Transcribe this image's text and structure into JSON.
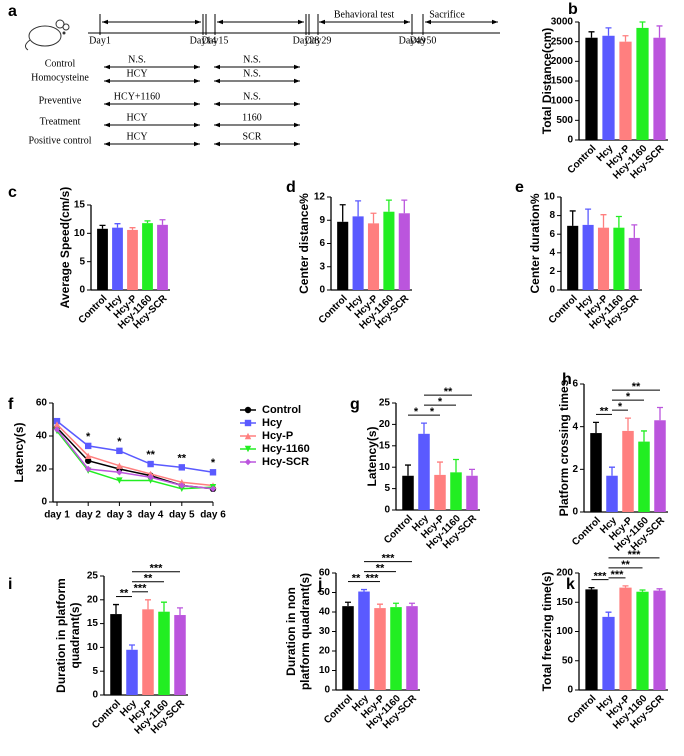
{
  "timeline": {
    "panel": "a",
    "days": [
      "Day1",
      "Day14",
      "Day15",
      "Day28",
      "Day29",
      "Day49",
      "Day50"
    ],
    "phases": [
      "Behavioral test",
      "Sacrifice"
    ],
    "groups": [
      {
        "name": "Control",
        "first": "N.S.",
        "second": "N.S."
      },
      {
        "name": "Homocysteine",
        "first": "HCY",
        "second": "N.S."
      },
      {
        "name": "Preventive",
        "first": "HCY+1160",
        "second": "N.S."
      },
      {
        "name": "Treatment",
        "first": "HCY",
        "second": "1160"
      },
      {
        "name": "Positive control",
        "first": "HCY",
        "second": "SCR"
      }
    ]
  },
  "chart_data": [
    {
      "type": "bar",
      "panel": "b",
      "ylabel": "Total Distance(cm)",
      "categories": [
        "Control",
        "Hcy",
        "Hcy-P",
        "Hcy-1160",
        "Hcy-SCR"
      ],
      "colors": [
        "#000000",
        "#5a5aff",
        "#ff7f7f",
        "#22ee22",
        "#bb55dd"
      ],
      "values": [
        2600,
        2650,
        2500,
        2850,
        2600
      ],
      "errors": [
        150,
        200,
        150,
        150,
        300
      ],
      "ylim": [
        0,
        3000
      ],
      "yticks": [
        0,
        500,
        1000,
        1500,
        2000,
        2500,
        3000
      ]
    },
    {
      "type": "bar",
      "panel": "c",
      "ylabel": "Average Speed(cm/s)",
      "categories": [
        "Control",
        "Hcy",
        "Hcy-P",
        "Hcy-1160",
        "Hcy-SCR"
      ],
      "colors": [
        "#000000",
        "#5a5aff",
        "#ff7f7f",
        "#22ee22",
        "#bb55dd"
      ],
      "values": [
        10.8,
        11,
        10.6,
        11.8,
        11.5
      ],
      "errors": [
        0.6,
        0.7,
        0.4,
        0.4,
        0.9
      ],
      "ylim": [
        0,
        15
      ],
      "yticks": [
        0,
        5,
        10,
        15
      ]
    },
    {
      "type": "bar",
      "panel": "d",
      "ylabel": "Center distance%",
      "categories": [
        "Control",
        "Hcy",
        "Hcy-P",
        "Hcy-1160",
        "Hcy-SCR"
      ],
      "colors": [
        "#000000",
        "#5a5aff",
        "#ff7f7f",
        "#22ee22",
        "#bb55dd"
      ],
      "values": [
        8.8,
        9.5,
        8.6,
        10.1,
        9.9
      ],
      "errors": [
        2.2,
        2,
        1.3,
        1.5,
        1.7
      ],
      "ylim": [
        0,
        12
      ],
      "yticks": [
        0,
        3,
        6,
        9,
        12
      ]
    },
    {
      "type": "bar",
      "panel": "e",
      "ylabel": "Center duration%",
      "categories": [
        "Control",
        "Hcy",
        "Hcy-P",
        "Hcy-1160",
        "Hcy-SCR"
      ],
      "colors": [
        "#000000",
        "#5a5aff",
        "#ff7f7f",
        "#22ee22",
        "#bb55dd"
      ],
      "values": [
        6.9,
        7,
        6.7,
        6.7,
        5.6
      ],
      "errors": [
        1.6,
        1.7,
        1.4,
        1.2,
        1.4
      ],
      "ylim": [
        0,
        10
      ],
      "yticks": [
        0,
        2,
        4,
        6,
        8,
        10
      ]
    },
    {
      "type": "line",
      "panel": "f",
      "ylabel": "Latency(s)",
      "categories": [
        "day 1",
        "day 2",
        "day 3",
        "day 4",
        "day 5",
        "day 6"
      ],
      "series": [
        {
          "name": "Control",
          "color": "#000000",
          "marker": "circle",
          "values": [
            45,
            25,
            20,
            16,
            10,
            8
          ]
        },
        {
          "name": "Hcy",
          "color": "#5a5aff",
          "marker": "square",
          "values": [
            49,
            34,
            31,
            23,
            21,
            18
          ]
        },
        {
          "name": "Hcy-P",
          "color": "#ff7f7f",
          "marker": "triangle",
          "values": [
            47,
            28,
            22,
            17,
            12,
            10
          ]
        },
        {
          "name": "Hcy-1160",
          "color": "#22ee22",
          "marker": "triangle-down",
          "values": [
            43,
            19,
            13,
            13,
            8,
            9
          ]
        },
        {
          "name": "Hcy-SCR",
          "color": "#bb55dd",
          "marker": "diamond",
          "values": [
            44,
            20,
            18,
            15,
            10,
            8
          ]
        }
      ],
      "annotations": [
        {
          "x": 1,
          "label": "*"
        },
        {
          "x": 2,
          "label": "*"
        },
        {
          "x": 3,
          "label": "**"
        },
        {
          "x": 4,
          "label": "**"
        },
        {
          "x": 5,
          "label": "*"
        }
      ],
      "ylim": [
        0,
        60
      ],
      "yticks": [
        0,
        20,
        40,
        60
      ]
    },
    {
      "type": "bar",
      "panel": "g",
      "ylabel": "Latency(s)",
      "categories": [
        "Control",
        "Hcy",
        "Hcy-P",
        "Hcy-1160",
        "Hcy-SCR"
      ],
      "colors": [
        "#000000",
        "#5a5aff",
        "#ff7f7f",
        "#22ee22",
        "#bb55dd"
      ],
      "values": [
        8,
        17.8,
        8.2,
        8.8,
        8
      ],
      "errors": [
        2.5,
        2.5,
        3,
        3,
        1.5
      ],
      "ylim": [
        0,
        25
      ],
      "yticks": [
        0,
        5,
        10,
        15,
        20,
        25
      ],
      "annotations": [
        {
          "from": 0,
          "to": 1,
          "label": "*"
        },
        {
          "from": 1,
          "to": 2,
          "label": "*"
        },
        {
          "from": 1,
          "to": 3,
          "label": "*"
        },
        {
          "from": 1,
          "to": 4,
          "label": "**"
        }
      ]
    },
    {
      "type": "bar",
      "panel": "h",
      "ylabel": "Platform crossing times",
      "categories": [
        "Control",
        "Hcy",
        "Hcy-P",
        "Hcy-1160",
        "Hcy-SCR"
      ],
      "colors": [
        "#000000",
        "#5a5aff",
        "#ff7f7f",
        "#22ee22",
        "#bb55dd"
      ],
      "values": [
        3.7,
        1.7,
        3.8,
        3.3,
        4.3
      ],
      "errors": [
        0.5,
        0.4,
        0.6,
        0.5,
        0.6
      ],
      "ylim": [
        0,
        6
      ],
      "yticks": [
        0,
        2,
        4,
        6
      ],
      "annotations": [
        {
          "from": 0,
          "to": 1,
          "label": "**"
        },
        {
          "from": 1,
          "to": 2,
          "label": "*"
        },
        {
          "from": 1,
          "to": 3,
          "label": "*"
        },
        {
          "from": 1,
          "to": 4,
          "label": "**"
        }
      ]
    },
    {
      "type": "bar",
      "panel": "i",
      "ylabel": [
        "Duration in platform",
        "quadrant(s)"
      ],
      "categories": [
        "Control",
        "Hcy",
        "Hcy-P",
        "Hcy-1160",
        "Hcy-SCR"
      ],
      "colors": [
        "#000000",
        "#5a5aff",
        "#ff7f7f",
        "#22ee22",
        "#bb55dd"
      ],
      "values": [
        17,
        9.5,
        18,
        17.5,
        16.8
      ],
      "errors": [
        2,
        1,
        2,
        2,
        1.5
      ],
      "ylim": [
        0,
        25
      ],
      "yticks": [
        0,
        5,
        10,
        15,
        20,
        25
      ],
      "annotations": [
        {
          "from": 0,
          "to": 1,
          "label": "**"
        },
        {
          "from": 1,
          "to": 2,
          "label": "***"
        },
        {
          "from": 1,
          "to": 3,
          "label": "**"
        },
        {
          "from": 1,
          "to": 4,
          "label": "***"
        }
      ]
    },
    {
      "type": "bar",
      "panel": "j",
      "ylabel": [
        "Duration in non",
        "platform quadrant(s)"
      ],
      "categories": [
        "Control",
        "Hcy",
        "Hcy-P",
        "Hcy-1160",
        "Hcy-SCR"
      ],
      "colors": [
        "#000000",
        "#5a5aff",
        "#ff7f7f",
        "#22ee22",
        "#bb55dd"
      ],
      "values": [
        43,
        50.5,
        42,
        42.5,
        43
      ],
      "errors": [
        2,
        1,
        2,
        2,
        1.5
      ],
      "ylim": [
        0,
        60
      ],
      "yticks": [
        0,
        10,
        20,
        30,
        40,
        50,
        60
      ],
      "annotations": [
        {
          "from": 0,
          "to": 1,
          "label": "**"
        },
        {
          "from": 1,
          "to": 2,
          "label": "***"
        },
        {
          "from": 1,
          "to": 3,
          "label": "**"
        },
        {
          "from": 1,
          "to": 4,
          "label": "***"
        }
      ]
    },
    {
      "type": "bar",
      "panel": "k",
      "ylabel": "Total freezing time(s)",
      "categories": [
        "Control",
        "Hcy",
        "Hcy-P",
        "Hcy-1160",
        "Hcy-SCR"
      ],
      "colors": [
        "#000000",
        "#5a5aff",
        "#ff7f7f",
        "#22ee22",
        "#bb55dd"
      ],
      "values": [
        172,
        125,
        175,
        168,
        170
      ],
      "errors": [
        3,
        8,
        3,
        3,
        3
      ],
      "ylim": [
        0,
        200
      ],
      "yticks": [
        0,
        50,
        100,
        150,
        200
      ],
      "annotations": [
        {
          "from": 0,
          "to": 1,
          "label": "***"
        },
        {
          "from": 1,
          "to": 2,
          "label": "***"
        },
        {
          "from": 1,
          "to": 3,
          "label": "**"
        },
        {
          "from": 1,
          "to": 4,
          "label": "***"
        }
      ]
    }
  ]
}
